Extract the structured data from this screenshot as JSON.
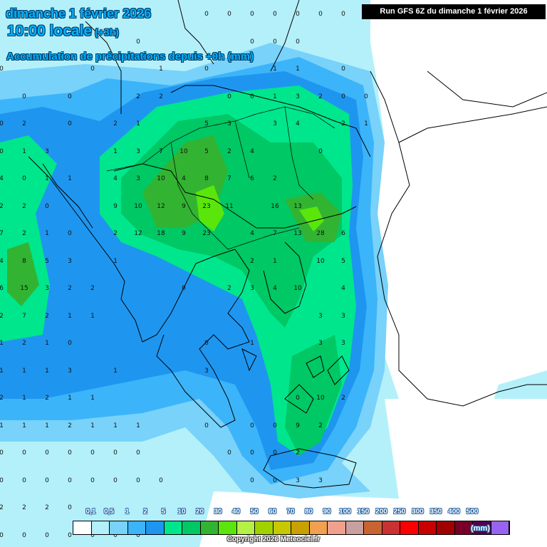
{
  "header": {
    "date": "dimanche 1 février 2026",
    "time": "10:00 locale",
    "offset": "(+3h)",
    "parameter": "Accumulation de précipitations depuis +0h (mm)",
    "run": "Run GFS 6Z du dimanche 1 février 2026"
  },
  "legend": {
    "labels": [
      "0,1",
      "0,5",
      "1",
      "2",
      "5",
      "10",
      "20",
      "30",
      "40",
      "50",
      "60",
      "70",
      "80",
      "90",
      "100",
      "150",
      "200",
      "250",
      "300",
      "350",
      "400",
      "500"
    ],
    "colors": [
      "#ffffff",
      "#b4f0fa",
      "#78d2fa",
      "#3cb4fa",
      "#1e96f0",
      "#00e68c",
      "#00c864",
      "#32b432",
      "#5ae60a",
      "#b4f046",
      "#a0d200",
      "#c8c800",
      "#c8a000",
      "#f0a050",
      "#f0a08c",
      "#c8a0a0",
      "#c86432",
      "#c83232",
      "#fa0000",
      "#c80000",
      "#a00000",
      "#780028",
      "#500050",
      "#9664f0"
    ],
    "unit": "(mm)"
  },
  "copyright": "Copyright 2026 Meteociel.fr",
  "grid_values": [
    {
      "row": 0,
      "vals": [
        "",
        "",
        "",
        "",
        "",
        "",
        "",
        "",
        "",
        "0",
        "0",
        "0",
        "0",
        "0",
        "0",
        "0",
        "",
        ""
      ]
    },
    {
      "row": 1,
      "vals": [
        "",
        "",
        "",
        "",
        "",
        "",
        "0",
        "",
        "",
        "",
        "",
        "0",
        "0",
        "0",
        "",
        "",
        "",
        ""
      ]
    },
    {
      "row": 2,
      "vals": [
        "0",
        "",
        "",
        "",
        "0",
        "",
        "",
        "1",
        "",
        "0",
        "",
        "",
        "1",
        "1",
        "",
        "0",
        "",
        ""
      ]
    },
    {
      "row": 3,
      "vals": [
        "",
        "0",
        "",
        "0",
        "",
        "",
        "2",
        "2",
        "",
        "",
        "0",
        "0",
        "1",
        "3",
        "2",
        "0",
        "0",
        ""
      ]
    },
    {
      "row": 4,
      "vals": [
        "0",
        "2",
        "",
        "0",
        "",
        "2",
        "1",
        "",
        "",
        "5",
        "3",
        "",
        "3",
        "4",
        "",
        "2",
        "1",
        ""
      ]
    },
    {
      "row": 5,
      "vals": [
        "0",
        "1",
        "3",
        "",
        "",
        "1",
        "3",
        "7",
        "10",
        "5",
        "2",
        "4",
        "",
        "",
        "0",
        "",
        ""
      ]
    },
    {
      "row": 6,
      "vals": [
        "4",
        "0",
        "1",
        "1",
        "",
        "4",
        "3",
        "10",
        "4",
        "8",
        "7",
        "6",
        "2",
        "",
        "",
        ""
      ]
    },
    {
      "row": 7,
      "vals": [
        "2",
        "2",
        "0",
        "",
        "",
        "9",
        "10",
        "12",
        "9",
        "23",
        "11",
        "",
        "16",
        "13",
        "",
        ""
      ]
    },
    {
      "row": 8,
      "vals": [
        "7",
        "2",
        "1",
        "0",
        "",
        "2",
        "12",
        "18",
        "9",
        "23",
        "",
        "4",
        "7",
        "13",
        "28",
        "6"
      ]
    },
    {
      "row": 9,
      "vals": [
        "4",
        "8",
        "5",
        "3",
        "",
        "1",
        "",
        "",
        "",
        "",
        "",
        "2",
        "1",
        "",
        "10",
        "5"
      ]
    },
    {
      "row": 10,
      "vals": [
        "6",
        "15",
        "3",
        "2",
        "2",
        "",
        "",
        "",
        "0",
        "",
        "2",
        "3",
        "4",
        "10",
        "",
        "4"
      ]
    },
    {
      "row": 11,
      "vals": [
        "2",
        "7",
        "2",
        "1",
        "1",
        "",
        "",
        "",
        "",
        "",
        "",
        "",
        "",
        "",
        "3",
        "3"
      ]
    },
    {
      "row": 12,
      "vals": [
        "1",
        "2",
        "1",
        "0",
        "",
        "",
        "",
        "",
        "",
        "0",
        "",
        "1",
        "",
        "",
        "3",
        "3"
      ]
    },
    {
      "row": 13,
      "vals": [
        "1",
        "1",
        "1",
        "3",
        "",
        "1",
        "",
        "",
        "",
        "3",
        "",
        "",
        "",
        "",
        "",
        "",
        ""
      ]
    },
    {
      "row": 14,
      "vals": [
        "2",
        "1",
        "2",
        "1",
        "1",
        "",
        "",
        "",
        "",
        "",
        "",
        "",
        "",
        "0",
        "10",
        "2"
      ]
    },
    {
      "row": 15,
      "vals": [
        "1",
        "1",
        "1",
        "2",
        "1",
        "1",
        "1",
        "",
        "",
        "0",
        "",
        "0",
        "0",
        "9",
        "2",
        ""
      ]
    },
    {
      "row": 16,
      "vals": [
        "0",
        "0",
        "0",
        "0",
        "0",
        "0",
        "0",
        "",
        "",
        "",
        "0",
        "0",
        "0",
        "2",
        ""
      ]
    },
    {
      "row": 17,
      "vals": [
        "0",
        "0",
        "0",
        "0",
        "0",
        "0",
        "0",
        "0",
        "",
        "",
        "",
        "0",
        "0",
        "3",
        "3",
        ""
      ]
    },
    {
      "row": 18,
      "vals": [
        "2",
        "2",
        "2",
        "0",
        "",
        "",
        "",
        "",
        "",
        "",
        "",
        "",
        "",
        "",
        "",
        ""
      ]
    },
    {
      "row": 19,
      "vals": [
        "0",
        "0",
        "0",
        "0",
        "0",
        "0",
        "0",
        "",
        "",
        "",
        "",
        "",
        "",
        "",
        ""
      ]
    }
  ]
}
